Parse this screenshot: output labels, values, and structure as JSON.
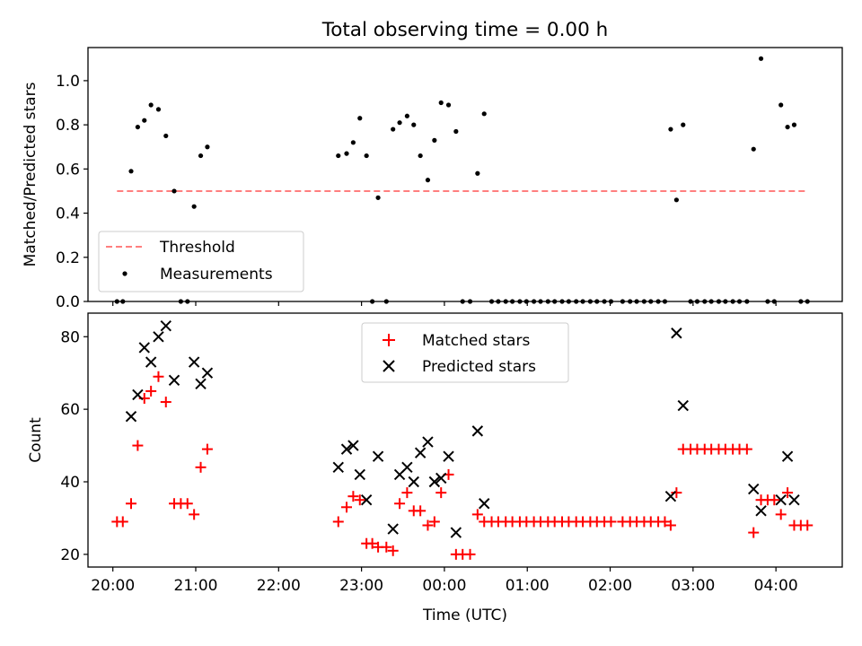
{
  "chart_data": [
    {
      "type": "scatter",
      "title": "Total observing time = 0.00 h",
      "ylabel": "Matched/Predicted stars",
      "ylim": [
        0,
        1.15
      ],
      "xlim": [
        19.7,
        28.8
      ],
      "yticks": [
        0.0,
        0.2,
        0.4,
        0.6,
        0.8,
        1.0
      ],
      "ytick_labels": [
        "0.0",
        "0.2",
        "0.4",
        "0.6",
        "0.8",
        "1.0"
      ],
      "xtick_labels_hidden": true,
      "threshold": {
        "name": "Threshold",
        "value": 0.5,
        "x_range": [
          20.05,
          28.35
        ],
        "color": "#ff7f7f",
        "style": "dashed"
      },
      "series": [
        {
          "name": "Measurements",
          "color": "#000000",
          "marker": "dot",
          "points": [
            [
              20.05,
              0
            ],
            [
              20.12,
              0
            ],
            [
              20.22,
              0.59
            ],
            [
              20.3,
              0.79
            ],
            [
              20.38,
              0.82
            ],
            [
              20.46,
              0.89
            ],
            [
              20.55,
              0.87
            ],
            [
              20.64,
              0.75
            ],
            [
              20.74,
              0.5
            ],
            [
              20.82,
              0
            ],
            [
              20.9,
              0
            ],
            [
              20.98,
              0.43
            ],
            [
              21.06,
              0.66
            ],
            [
              21.14,
              0.7
            ],
            [
              22.72,
              0.66
            ],
            [
              22.82,
              0.67
            ],
            [
              22.9,
              0.72
            ],
            [
              22.98,
              0.83
            ],
            [
              23.06,
              0.66
            ],
            [
              23.13,
              0
            ],
            [
              23.2,
              0.47
            ],
            [
              23.3,
              0
            ],
            [
              23.38,
              0.78
            ],
            [
              23.46,
              0.81
            ],
            [
              23.55,
              0.84
            ],
            [
              23.63,
              0.8
            ],
            [
              23.71,
              0.66
            ],
            [
              23.8,
              0.55
            ],
            [
              23.88,
              0.73
            ],
            [
              23.96,
              0.9
            ],
            [
              24.05,
              0.89
            ],
            [
              24.14,
              0.77
            ],
            [
              24.22,
              0
            ],
            [
              24.31,
              0
            ],
            [
              24.4,
              0.58
            ],
            [
              24.48,
              0.85
            ],
            [
              24.57,
              0
            ],
            [
              24.65,
              0
            ],
            [
              24.74,
              0
            ],
            [
              24.82,
              0
            ],
            [
              24.91,
              0
            ],
            [
              24.99,
              0
            ],
            [
              25.08,
              0
            ],
            [
              25.16,
              0
            ],
            [
              25.25,
              0
            ],
            [
              25.33,
              0
            ],
            [
              25.42,
              0
            ],
            [
              25.5,
              0
            ],
            [
              25.59,
              0
            ],
            [
              25.67,
              0
            ],
            [
              25.76,
              0
            ],
            [
              25.84,
              0
            ],
            [
              25.93,
              0
            ],
            [
              26.01,
              0
            ],
            [
              26.15,
              0
            ],
            [
              26.24,
              0
            ],
            [
              26.32,
              0
            ],
            [
              26.41,
              0
            ],
            [
              26.49,
              0
            ],
            [
              26.58,
              0
            ],
            [
              26.66,
              0
            ],
            [
              26.73,
              0.78
            ],
            [
              26.8,
              0.46
            ],
            [
              26.88,
              0.8
            ],
            [
              26.97,
              0
            ],
            [
              27.05,
              0
            ],
            [
              27.14,
              0
            ],
            [
              27.22,
              0
            ],
            [
              27.31,
              0
            ],
            [
              27.39,
              0
            ],
            [
              27.48,
              0
            ],
            [
              27.56,
              0
            ],
            [
              27.65,
              0
            ],
            [
              27.73,
              0.69
            ],
            [
              27.82,
              1.1
            ],
            [
              27.9,
              0
            ],
            [
              27.98,
              0
            ],
            [
              28.06,
              0.89
            ],
            [
              28.14,
              0.79
            ],
            [
              28.22,
              0.8
            ],
            [
              28.3,
              0
            ],
            [
              28.38,
              0
            ]
          ]
        }
      ],
      "legend": {
        "location": "lower-left",
        "entries": [
          "Threshold",
          "Measurements"
        ]
      }
    },
    {
      "type": "scatter",
      "xlabel": "Time (UTC)",
      "ylabel": "Count",
      "ylim": [
        16.5,
        86.5
      ],
      "xlim": [
        19.7,
        28.8
      ],
      "yticks": [
        20,
        40,
        60,
        80
      ],
      "ytick_labels": [
        "20",
        "40",
        "60",
        "80"
      ],
      "xticks": [
        20,
        21,
        22,
        23,
        24,
        25,
        26,
        27,
        28
      ],
      "xtick_labels": [
        "20:00",
        "21:00",
        "22:00",
        "23:00",
        "00:00",
        "01:00",
        "02:00",
        "03:00",
        "04:00"
      ],
      "series": [
        {
          "name": "Matched stars",
          "color": "#ff0000",
          "marker": "plus",
          "points": [
            [
              20.05,
              29
            ],
            [
              20.12,
              29
            ],
            [
              20.22,
              34
            ],
            [
              20.3,
              50
            ],
            [
              20.38,
              63
            ],
            [
              20.46,
              65
            ],
            [
              20.55,
              69
            ],
            [
              20.64,
              62
            ],
            [
              20.74,
              34
            ],
            [
              20.82,
              34
            ],
            [
              20.9,
              34
            ],
            [
              20.98,
              31
            ],
            [
              21.06,
              44
            ],
            [
              21.14,
              49
            ],
            [
              22.72,
              29
            ],
            [
              22.82,
              33
            ],
            [
              22.9,
              36
            ],
            [
              22.98,
              35
            ],
            [
              23.06,
              23
            ],
            [
              23.13,
              23
            ],
            [
              23.2,
              22
            ],
            [
              23.3,
              22
            ],
            [
              23.38,
              21
            ],
            [
              23.46,
              34
            ],
            [
              23.55,
              37
            ],
            [
              23.63,
              32
            ],
            [
              23.71,
              32
            ],
            [
              23.8,
              28
            ],
            [
              23.88,
              29
            ],
            [
              23.96,
              37
            ],
            [
              24.05,
              42
            ],
            [
              24.14,
              20
            ],
            [
              24.22,
              20
            ],
            [
              24.31,
              20
            ],
            [
              24.4,
              31
            ],
            [
              24.48,
              29
            ],
            [
              24.57,
              29
            ],
            [
              24.65,
              29
            ],
            [
              24.74,
              29
            ],
            [
              24.82,
              29
            ],
            [
              24.91,
              29
            ],
            [
              24.99,
              29
            ],
            [
              25.08,
              29
            ],
            [
              25.16,
              29
            ],
            [
              25.25,
              29
            ],
            [
              25.33,
              29
            ],
            [
              25.42,
              29
            ],
            [
              25.5,
              29
            ],
            [
              25.59,
              29
            ],
            [
              25.67,
              29
            ],
            [
              25.76,
              29
            ],
            [
              25.84,
              29
            ],
            [
              25.93,
              29
            ],
            [
              26.01,
              29
            ],
            [
              26.15,
              29
            ],
            [
              26.24,
              29
            ],
            [
              26.32,
              29
            ],
            [
              26.41,
              29
            ],
            [
              26.49,
              29
            ],
            [
              26.58,
              29
            ],
            [
              26.66,
              29
            ],
            [
              26.73,
              28
            ],
            [
              26.8,
              37
            ],
            [
              26.88,
              49
            ],
            [
              26.97,
              49
            ],
            [
              27.05,
              49
            ],
            [
              27.14,
              49
            ],
            [
              27.22,
              49
            ],
            [
              27.31,
              49
            ],
            [
              27.39,
              49
            ],
            [
              27.48,
              49
            ],
            [
              27.56,
              49
            ],
            [
              27.65,
              49
            ],
            [
              27.73,
              26
            ],
            [
              27.82,
              35
            ],
            [
              27.9,
              35
            ],
            [
              27.98,
              35
            ],
            [
              28.06,
              31
            ],
            [
              28.14,
              37
            ],
            [
              28.22,
              28
            ],
            [
              28.3,
              28
            ],
            [
              28.38,
              28
            ]
          ]
        },
        {
          "name": "Predicted stars",
          "color": "#000000",
          "marker": "x",
          "points": [
            [
              20.22,
              58
            ],
            [
              20.3,
              64
            ],
            [
              20.38,
              77
            ],
            [
              20.46,
              73
            ],
            [
              20.55,
              80
            ],
            [
              20.64,
              83
            ],
            [
              20.74,
              68
            ],
            [
              20.98,
              73
            ],
            [
              21.06,
              67
            ],
            [
              21.14,
              70
            ],
            [
              22.72,
              44
            ],
            [
              22.82,
              49
            ],
            [
              22.9,
              50
            ],
            [
              22.98,
              42
            ],
            [
              23.06,
              35
            ],
            [
              23.2,
              47
            ],
            [
              23.38,
              27
            ],
            [
              23.46,
              42
            ],
            [
              23.55,
              44
            ],
            [
              23.63,
              40
            ],
            [
              23.71,
              48
            ],
            [
              23.8,
              51
            ],
            [
              23.88,
              40
            ],
            [
              23.96,
              41
            ],
            [
              24.05,
              47
            ],
            [
              24.14,
              26
            ],
            [
              24.4,
              54
            ],
            [
              24.48,
              34
            ],
            [
              26.73,
              36
            ],
            [
              26.8,
              81
            ],
            [
              26.88,
              61
            ],
            [
              27.73,
              38
            ],
            [
              27.82,
              32
            ],
            [
              28.06,
              35
            ],
            [
              28.14,
              47
            ],
            [
              28.22,
              35
            ]
          ]
        }
      ],
      "legend": {
        "location": "upper-center",
        "entries": [
          "Matched stars",
          "Predicted stars"
        ]
      }
    }
  ]
}
